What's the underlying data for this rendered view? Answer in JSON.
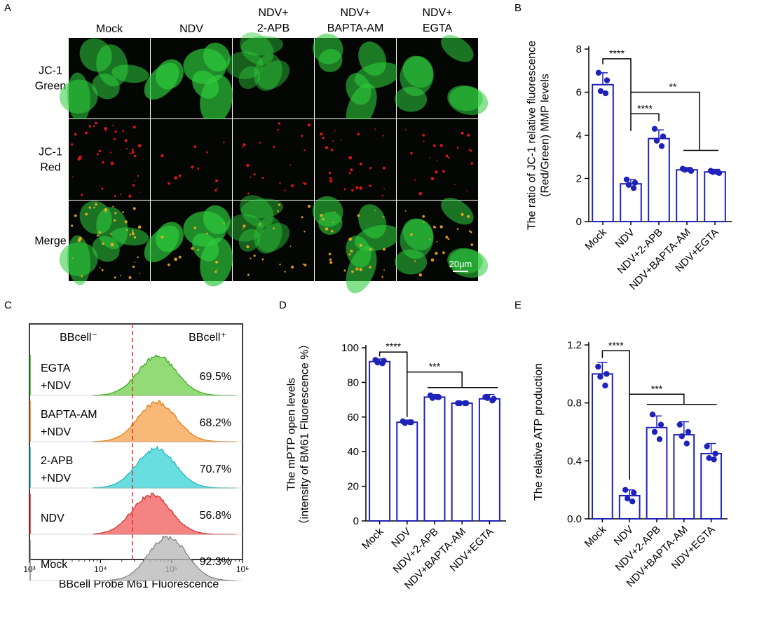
{
  "panel_letters": [
    "A",
    "B",
    "C",
    "D",
    "E"
  ],
  "colors": {
    "bar": "#1f22b8",
    "dot": "#1f22b8",
    "green_cell": "#2ecc3c",
    "red_spot": "#ff1a1a",
    "hist": [
      "#6fcf4a",
      "#f6a04a",
      "#37d3d6",
      "#f05a5a",
      "#b5b5b5"
    ],
    "hist_line": [
      "#35a81a",
      "#e47a12",
      "#1fb3b8",
      "#d92a2a",
      "#808080"
    ],
    "threshold_line": "#e03030"
  },
  "micrograph": {
    "columns": [
      "Mock",
      "NDV",
      "NDV+\n2-APB",
      "NDV+\nBAPTA-AM",
      "NDV+\nEGTA"
    ],
    "rows": [
      "JC-1\nGreen",
      "JC-1\nRed",
      "Merge"
    ],
    "scale_bar": "20μm",
    "green_level": [
      0.7,
      0.95,
      0.45,
      0.75,
      0.7
    ],
    "red_level": [
      0.8,
      0.15,
      0.35,
      0.5,
      0.45
    ]
  },
  "chart_data": [
    {
      "panel": "B",
      "type": "bar",
      "categories": [
        "Mock",
        "NDV",
        "NDV+2-APB",
        "NDV+BAPTA-AM",
        "NDV+EGTA"
      ],
      "values": [
        6.35,
        1.75,
        3.85,
        2.4,
        2.3
      ],
      "errors": [
        0.55,
        0.2,
        0.4,
        0.1,
        0.12
      ],
      "points": [
        [
          6.9,
          6.55,
          6.05,
          5.95
        ],
        [
          1.95,
          1.8,
          1.7,
          1.55
        ],
        [
          4.3,
          3.95,
          3.75,
          3.5
        ],
        [
          2.45,
          2.35,
          2.4,
          2.4
        ],
        [
          2.35,
          2.25,
          2.3,
          2.28
        ]
      ],
      "ylabel": "The ratio of JC-1 relative fluorescence\n(Red/Green) MMP levels",
      "ylim": [
        0,
        8
      ],
      "yticks": [
        0,
        2,
        4,
        6,
        8
      ],
      "significance": [
        "****",
        "****",
        "**"
      ]
    },
    {
      "panel": "C",
      "type": "area",
      "series": [
        {
          "name": "EGTA\n+NDV",
          "percent": "69.5%",
          "peak_log": 4.8
        },
        {
          "name": "BAPTA-AM\n+NDV",
          "percent": "68.2%",
          "peak_log": 4.8
        },
        {
          "name": "2-APB\n+NDV",
          "percent": "70.7%",
          "peak_log": 4.78
        },
        {
          "name": "NDV",
          "percent": "56.8%",
          "peak_log": 4.72
        },
        {
          "name": "Mock",
          "percent": "92.3%",
          "peak_log": 4.95
        }
      ],
      "gate_labels": [
        "BBcell⁻",
        "BBcell⁺"
      ],
      "gate_log": 4.45,
      "xticks": [
        "10³",
        "10⁴",
        "10⁵",
        "10⁶"
      ],
      "xlim_log": [
        3,
        6
      ],
      "xlabel": "BBcell Probe M61 Fluorescence"
    },
    {
      "panel": "D",
      "type": "bar",
      "categories": [
        "Mock",
        "NDV",
        "NDV+2-APB",
        "NDV+BAPTA-AM",
        "NDV+EGTA"
      ],
      "values": [
        92,
        57,
        71.5,
        68,
        70.5
      ],
      "errors": [
        1.5,
        1.2,
        1.5,
        0.8,
        2.5
      ],
      "points": [
        [
          93,
          92.5,
          91.5,
          91
        ],
        [
          57.5,
          57,
          56.5,
          57
        ],
        [
          72.5,
          71.5,
          71,
          71.5
        ],
        [
          68,
          68,
          68,
          68
        ],
        [
          71.5,
          70.5,
          71,
          69.5
        ]
      ],
      "ylabel": "The mPTP open levels\n（intensity of BM61 Fluorescence  %）",
      "ylim": [
        0,
        100
      ],
      "yticks": [
        0,
        20,
        40,
        60,
        80,
        100
      ],
      "significance": [
        "****",
        "***"
      ]
    },
    {
      "panel": "E",
      "type": "bar",
      "categories": [
        "Mock",
        "NDV",
        "NDV+2-APB",
        "NDV+BAPTA-AM",
        "NDV+EGTA"
      ],
      "values": [
        1.0,
        0.16,
        0.63,
        0.58,
        0.45
      ],
      "errors": [
        0.08,
        0.04,
        0.08,
        0.09,
        0.07
      ],
      "points": [
        [
          1.05,
          1.0,
          0.98,
          0.92
        ],
        [
          0.2,
          0.18,
          0.14,
          0.12
        ],
        [
          0.72,
          0.65,
          0.6,
          0.55
        ],
        [
          0.65,
          0.6,
          0.57,
          0.52
        ],
        [
          0.5,
          0.45,
          0.42,
          0.41
        ]
      ],
      "ylabel": "The relative ATP production",
      "ylim": [
        0,
        1.2
      ],
      "yticks": [
        "0.0",
        "0.4",
        "0.8",
        "1.2"
      ],
      "significance": [
        "****",
        "***"
      ]
    }
  ]
}
